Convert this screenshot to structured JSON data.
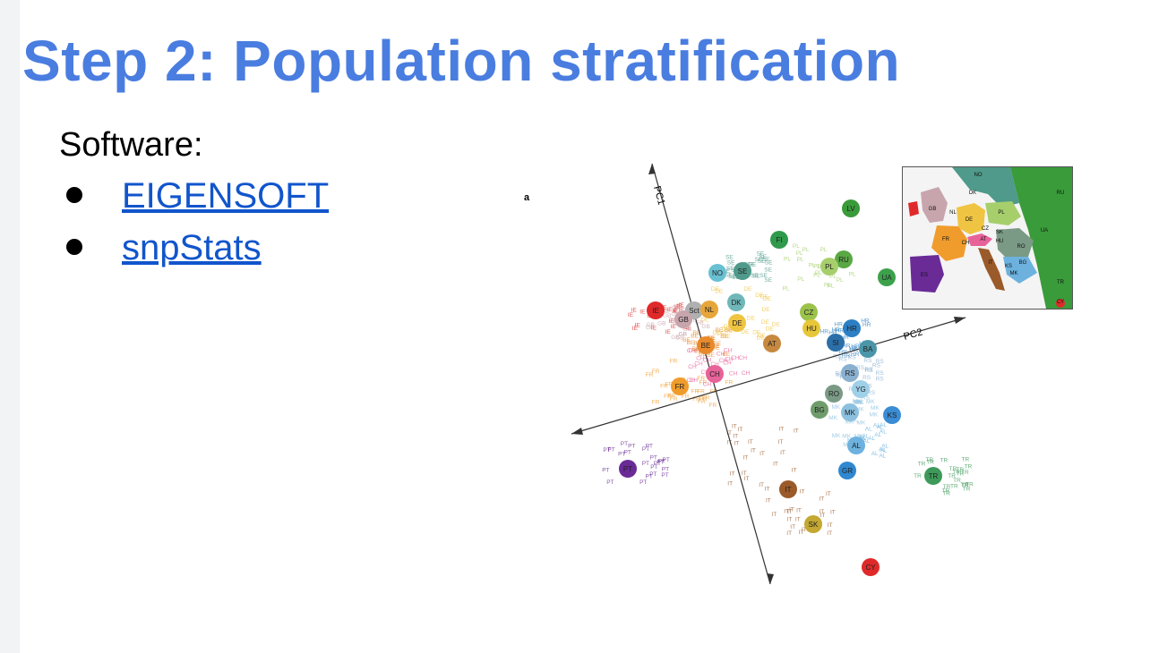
{
  "slide": {
    "title": "Step 2: Population stratification",
    "software_label": "Software:",
    "links": [
      {
        "label": "EIGENSOFT"
      },
      {
        "label": "snpStats"
      }
    ]
  },
  "figure": {
    "panel_letter": "a",
    "axis_pc1": "PC1",
    "axis_pc2": "PC2",
    "populations": [
      {
        "code": "LV",
        "color": "#3a9b3a"
      },
      {
        "code": "FI",
        "color": "#2f9a4b"
      },
      {
        "code": "RU",
        "color": "#5aa844"
      },
      {
        "code": "PL",
        "color": "#a6cf6c"
      },
      {
        "code": "UA",
        "color": "#3da14c"
      },
      {
        "code": "NO",
        "color": "#68c0d2"
      },
      {
        "code": "SE",
        "color": "#4f9a8a"
      },
      {
        "code": "DK",
        "color": "#6fb7b8"
      },
      {
        "code": "Sct",
        "color": "#b0b0b0"
      },
      {
        "code": "IE",
        "color": "#e0292a"
      },
      {
        "code": "GB",
        "color": "#c8a5ad"
      },
      {
        "code": "NL",
        "color": "#e7a63a"
      },
      {
        "code": "DE",
        "color": "#f0c443"
      },
      {
        "code": "CZ",
        "color": "#9bc24b"
      },
      {
        "code": "HU",
        "color": "#e7c63a"
      },
      {
        "code": "HR",
        "color": "#2c7fc4"
      },
      {
        "code": "SI",
        "color": "#2b6fa8"
      },
      {
        "code": "BA",
        "color": "#4a96a8"
      },
      {
        "code": "AT",
        "color": "#c7893f"
      },
      {
        "code": "BE",
        "color": "#e88a2c"
      },
      {
        "code": "CH",
        "color": "#e8629a"
      },
      {
        "code": "FR",
        "color": "#f09c2c"
      },
      {
        "code": "RS",
        "color": "#8ab0d0"
      },
      {
        "code": "YG",
        "color": "#9ed0e8"
      },
      {
        "code": "RO",
        "color": "#7a9a86"
      },
      {
        "code": "BG",
        "color": "#6f9c6b"
      },
      {
        "code": "MK",
        "color": "#8cc0df"
      },
      {
        "code": "KS",
        "color": "#3a8cd4"
      },
      {
        "code": "AL",
        "color": "#6db2de"
      },
      {
        "code": "GR",
        "color": "#2f88d0"
      },
      {
        "code": "TR",
        "color": "#3e9a5a"
      },
      {
        "code": "PT",
        "color": "#6a2b97"
      },
      {
        "code": "IT",
        "color": "#9a5a2a"
      },
      {
        "code": "SK",
        "color": "#c3a832"
      },
      {
        "code": "CY",
        "color": "#e02a2a"
      }
    ],
    "inset_labels": [
      "NO",
      "DK",
      "RU",
      "GB",
      "NL",
      "DE",
      "PL",
      "CZ",
      "SK",
      "UA",
      "FR",
      "CH",
      "AT",
      "HU",
      "RO",
      "BG",
      "TR",
      "ES",
      "IT",
      "KS",
      "MK",
      "CY"
    ]
  }
}
